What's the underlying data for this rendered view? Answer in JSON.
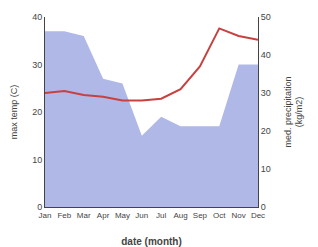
{
  "chart_data": {
    "type": "line",
    "xlabel": "date (month)",
    "ylabel": "max temp (C)",
    "y2label": "med. precipitation\n(kg/m2)",
    "categories": [
      "Jan",
      "Feb",
      "Mar",
      "Apr",
      "May",
      "Jun",
      "Jul",
      "Aug",
      "Sep",
      "Oct",
      "Nov",
      "Dec"
    ],
    "series": [
      {
        "type": "area",
        "color": "#b0b8e8",
        "values": [
          37,
          37,
          36,
          27,
          26,
          15,
          19,
          17,
          17,
          17,
          30,
          30
        ]
      },
      {
        "type": "line",
        "axis": "y2",
        "color": "#c94040",
        "values": [
          30,
          30.5,
          29.5,
          29,
          28,
          28,
          28.5,
          31,
          37,
          47,
          45,
          44
        ]
      }
    ],
    "ylim": [
      0,
      40
    ],
    "yticks": [
      0,
      10,
      20,
      30,
      40
    ],
    "y2lim": [
      0,
      50
    ],
    "y2ticks": [
      0,
      10,
      20,
      30,
      40,
      50
    ],
    "grid": false
  }
}
